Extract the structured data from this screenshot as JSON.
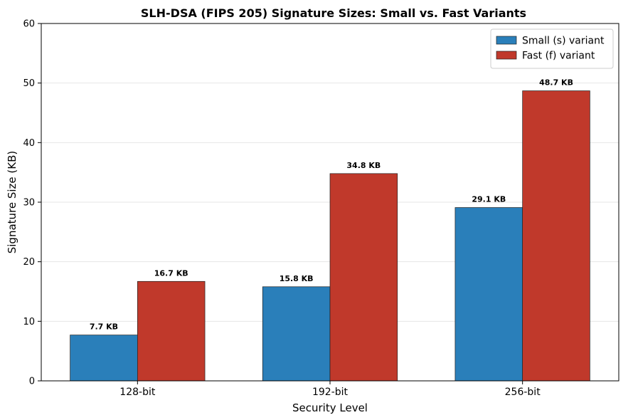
{
  "chart_data": {
    "type": "bar",
    "title": "SLH-DSA (FIPS 205) Signature Sizes: Small vs. Fast Variants",
    "xlabel": "Security Level",
    "ylabel": "Signature Size (KB)",
    "categories": [
      "128-bit",
      "192-bit",
      "256-bit"
    ],
    "ylim": [
      0,
      60
    ],
    "yticks": [
      0,
      10,
      20,
      30,
      40,
      50,
      60
    ],
    "grid": "horizontal",
    "legend_position": "top-right",
    "series": [
      {
        "name": "Small (s) variant",
        "color": "#2a7fba",
        "values": [
          7.7,
          15.8,
          29.1
        ],
        "labels": [
          "7.7 KB",
          "15.8 KB",
          "29.1 KB"
        ]
      },
      {
        "name": "Fast (f) variant",
        "color": "#c0392b",
        "values": [
          16.7,
          34.8,
          48.7
        ],
        "labels": [
          "16.7 KB",
          "34.8 KB",
          "48.7 KB"
        ]
      }
    ]
  }
}
